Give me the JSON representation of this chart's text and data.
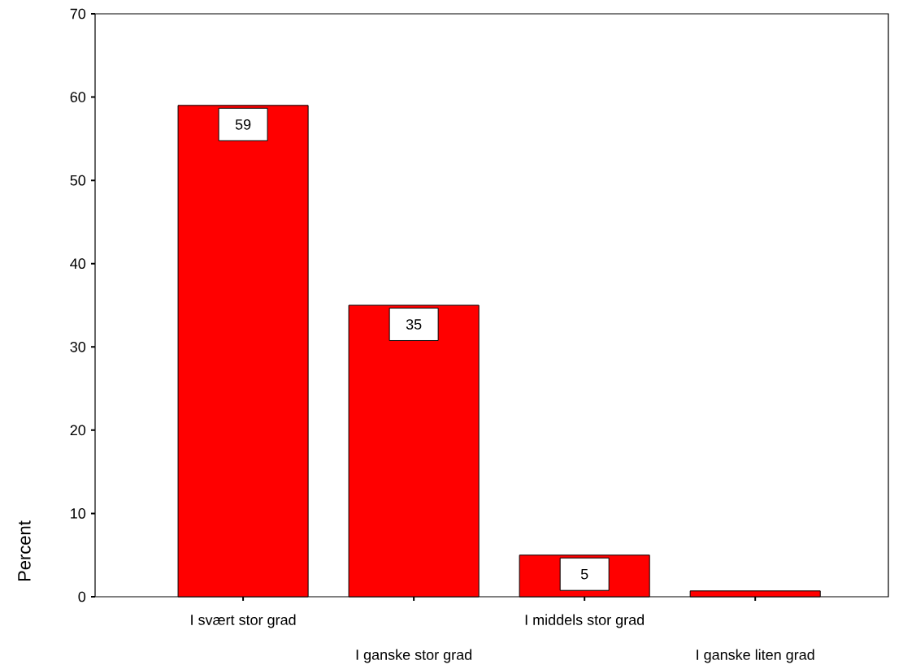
{
  "chart_data": {
    "type": "bar",
    "ylabel": "Percent",
    "categories": [
      "I svært stor grad",
      "I ganske stor grad",
      "I middels stor grad",
      "I ganske liten grad"
    ],
    "values": [
      59,
      35,
      5,
      0.7
    ],
    "value_labels": [
      "59",
      "35",
      "5",
      null
    ],
    "color": "#ff0000",
    "ylim": [
      0,
      70
    ],
    "yticks": [
      0,
      10,
      20,
      30,
      40,
      50,
      60,
      70
    ]
  }
}
